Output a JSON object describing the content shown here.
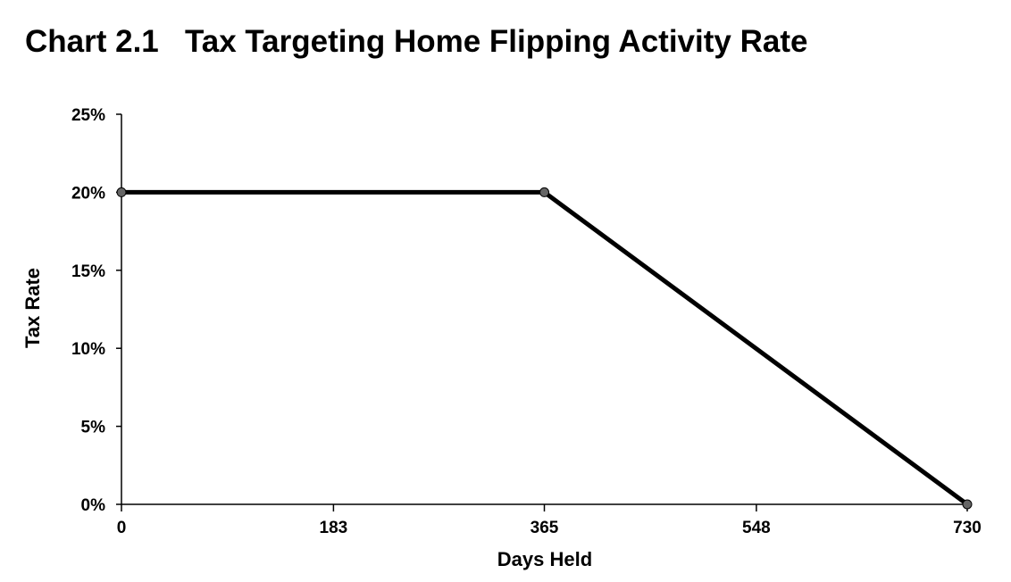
{
  "chart_data": {
    "type": "line",
    "title": "Chart 2.1   Tax Targeting Home Flipping Activity Rate",
    "x_label": "Days Held",
    "y_label": "Tax Rate",
    "x": [
      0,
      365,
      730
    ],
    "values": [
      20,
      20,
      0
    ],
    "color": "#000000",
    "marker_color": "#666666",
    "xlim": [
      0,
      730
    ],
    "xticks": [
      0,
      183,
      365,
      548,
      730
    ],
    "ylim": [
      0,
      25
    ],
    "yticks": [
      {
        "value": 0,
        "label": "0%"
      },
      {
        "value": 5,
        "label": "5%"
      },
      {
        "value": 10,
        "label": "10%"
      },
      {
        "value": 15,
        "label": "15%"
      },
      {
        "value": 20,
        "label": "20%"
      },
      {
        "value": 25,
        "label": "25%"
      }
    ],
    "grid": false
  }
}
